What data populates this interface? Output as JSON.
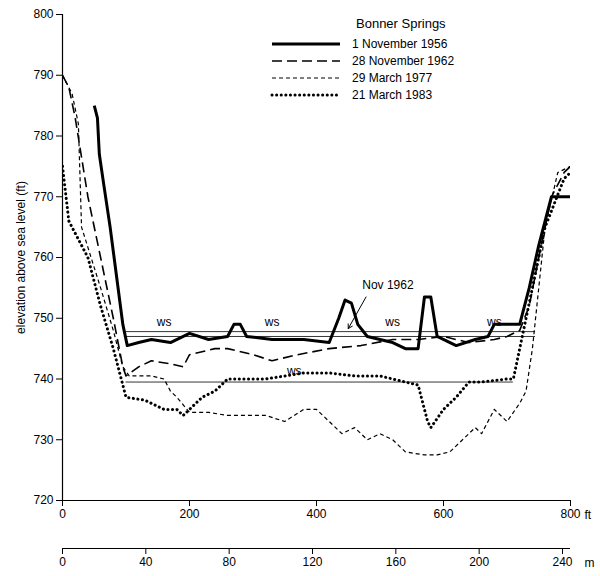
{
  "chart_data": {
    "type": "line",
    "title": "Bonner Springs",
    "y_label": "elevation above sea level (ft)",
    "xlabel": "ft",
    "x2label": "m",
    "xlim": [
      0,
      800
    ],
    "xticks": [
      0,
      200,
      400,
      600,
      800
    ],
    "x2lim": [
      0,
      243.84
    ],
    "x2ticks": [
      0,
      40,
      80,
      120,
      160,
      200,
      240
    ],
    "ylim": [
      720,
      800
    ],
    "yticks": [
      720,
      730,
      740,
      750,
      760,
      770,
      780,
      790,
      800
    ],
    "legend": "top",
    "series": [
      {
        "name": "1 November 1956",
        "color": "#000000",
        "line_style": "solid",
        "x": [
          50,
          55,
          58,
          65,
          75,
          85,
          95,
          102,
          120,
          140,
          170,
          200,
          230,
          260,
          270,
          280,
          290,
          330,
          380,
          420,
          435,
          445,
          455,
          465,
          480,
          520,
          540,
          560,
          570,
          580,
          590,
          620,
          650,
          670,
          680,
          710,
          720,
          735,
          750,
          770,
          800
        ],
        "values": [
          785,
          783,
          777,
          772,
          765,
          757,
          749,
          745.5,
          746,
          746.5,
          746,
          747.5,
          746.5,
          747,
          749,
          749,
          747,
          746.5,
          746.5,
          746,
          750,
          753,
          752.5,
          749,
          747,
          746,
          745,
          745,
          753.5,
          753.5,
          747,
          745.5,
          746.5,
          747,
          749,
          749,
          749,
          755,
          762,
          770,
          770
        ]
      },
      {
        "name": "28 November 1962",
        "color": "#000000",
        "line_style": "dashed",
        "x": [
          0,
          10,
          20,
          40,
          60,
          80,
          95,
          100,
          120,
          140,
          170,
          190,
          200,
          240,
          260,
          300,
          330,
          370,
          420,
          470,
          520,
          560,
          600,
          640,
          680,
          700,
          720,
          735,
          750,
          770,
          790,
          800
        ],
        "values": [
          790,
          788,
          783,
          770,
          760,
          750,
          742,
          740.5,
          742,
          743,
          742.5,
          742,
          744,
          745,
          745,
          744,
          743,
          744,
          745,
          745.5,
          746.5,
          746.5,
          747,
          746,
          746.5,
          747,
          748,
          752,
          760,
          770,
          774,
          775
        ]
      },
      {
        "name": "29 March 1977",
        "color": "#000000",
        "line_style": "short dashed",
        "x": [
          0,
          15,
          25,
          30,
          60,
          80,
          95,
          105,
          120,
          140,
          160,
          170,
          180,
          200,
          230,
          260,
          300,
          320,
          350,
          380,
          400,
          420,
          440,
          460,
          480,
          500,
          520,
          540,
          570,
          590,
          610,
          630,
          650,
          660,
          680,
          700,
          720,
          730,
          740,
          760,
          780,
          800
        ],
        "values": [
          790,
          787,
          782,
          765,
          755,
          748,
          742,
          740.5,
          740.5,
          740.5,
          740,
          738,
          737,
          734.5,
          734.5,
          734,
          734,
          734,
          733,
          735,
          735,
          733,
          731,
          732,
          730,
          731,
          730,
          728,
          727.5,
          727.5,
          728,
          730,
          732,
          731,
          735,
          733,
          736,
          738,
          745,
          765,
          774,
          775
        ]
      },
      {
        "name": "21 March 1983",
        "color": "#000000",
        "line_style": "dotted",
        "x": [
          0,
          10,
          25,
          40,
          60,
          80,
          100,
          130,
          160,
          180,
          190,
          200,
          220,
          240,
          260,
          280,
          320,
          380,
          420,
          460,
          500,
          520,
          560,
          575,
          580,
          600,
          620,
          640,
          660,
          700,
          710,
          720,
          740,
          760,
          790,
          800
        ],
        "values": [
          775,
          766,
          763,
          760,
          752,
          745,
          737,
          736.5,
          735,
          735,
          734,
          735,
          737,
          738,
          740,
          740,
          740,
          741,
          741,
          740.5,
          740.5,
          740,
          739,
          733,
          732,
          735,
          737,
          739.5,
          739.5,
          740,
          740,
          745,
          755,
          765,
          773,
          774
        ]
      }
    ],
    "water_surfaces": [
      {
        "x": [
          100,
          745
        ],
        "y": 747.8
      },
      {
        "x": [
          100,
          745
        ],
        "y": 747.0
      },
      {
        "x": [
          100,
          710
        ],
        "y": 739.5
      }
    ],
    "annotations": [
      {
        "text": "ws",
        "x": 160,
        "y": 749.3
      },
      {
        "text": "ws",
        "x": 330,
        "y": 749.3
      },
      {
        "text": "ws",
        "x": 520,
        "y": 749.3
      },
      {
        "text": "ws",
        "x": 680,
        "y": 749.3
      },
      {
        "text": "ws",
        "x": 365,
        "y": 741.3
      },
      {
        "text": "Nov 1962",
        "x": 472,
        "y": 755.5,
        "arrow": {
          "x1": 478,
          "y1": 753.5,
          "x2": 450,
          "y2": 748.3
        }
      }
    ]
  }
}
